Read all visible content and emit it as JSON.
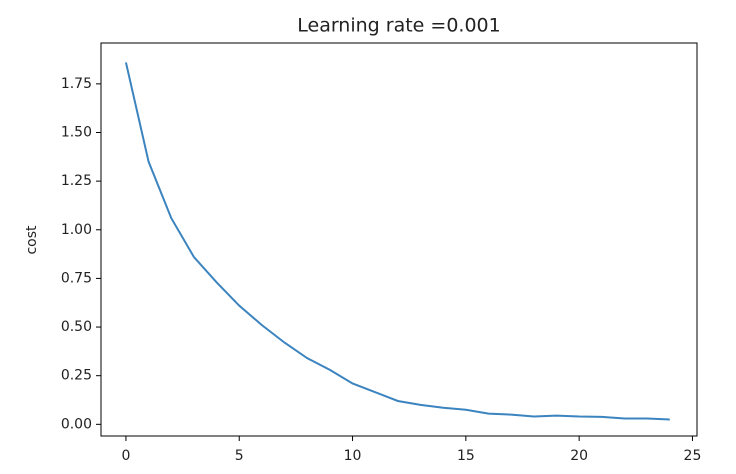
{
  "chart_data": {
    "type": "line",
    "title": "Learning rate =0.001",
    "y_label": "cost",
    "x": [
      0,
      1,
      2,
      3,
      4,
      5,
      6,
      7,
      8,
      9,
      10,
      11,
      12,
      13,
      14,
      15,
      16,
      17,
      18,
      19,
      20,
      21,
      22,
      23,
      24
    ],
    "series": [
      {
        "color": "#3b84bf",
        "values": [
          1.86,
          1.35,
          1.06,
          0.86,
          0.73,
          0.61,
          0.51,
          0.42,
          0.34,
          0.28,
          0.21,
          0.165,
          0.12,
          0.1,
          0.085,
          0.075,
          0.055,
          0.05,
          0.04,
          0.045,
          0.04,
          0.038,
          0.03,
          0.03,
          0.025
        ]
      }
    ],
    "xlim": [
      -1.1,
      25.2
    ],
    "ylim": [
      -0.06,
      1.96
    ],
    "xticks": [
      0,
      5,
      10,
      15,
      20,
      25
    ],
    "yticks": [
      {
        "value": 0,
        "label": "0.00"
      },
      {
        "value": 0.25,
        "label": "0.25"
      },
      {
        "value": 0.5,
        "label": "0.50"
      },
      {
        "value": 0.75,
        "label": "0.75"
      },
      {
        "value": 1,
        "label": "1.00"
      },
      {
        "value": 1.25,
        "label": "1.25"
      },
      {
        "value": 1.5,
        "label": "1.50"
      },
      {
        "value": 1.75,
        "label": "1.75"
      }
    ],
    "grid": false
  }
}
